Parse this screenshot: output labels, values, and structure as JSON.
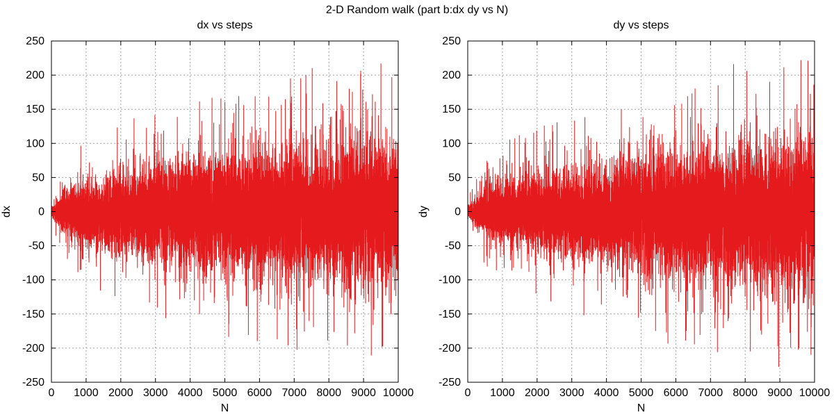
{
  "figure": {
    "title": "2-D Random walk (part b:dx dy vs N)",
    "series_color": "#e41a1c",
    "background": "#ffffff"
  },
  "chart_data": [
    {
      "type": "line",
      "title": "dx vs steps",
      "xlabel": "N",
      "ylabel": "dx",
      "xlim": [
        0,
        10000
      ],
      "ylim": [
        -250,
        250
      ],
      "xticks": [
        0,
        1000,
        2000,
        3000,
        4000,
        5000,
        6000,
        7000,
        8000,
        9000,
        10000
      ],
      "yticks": [
        250,
        200,
        150,
        100,
        50,
        0,
        -50,
        -100,
        -150,
        -200,
        -250
      ],
      "grid": true,
      "series": [
        {
          "color": "#e41a1c",
          "n_points": 10000,
          "envelope_x": [
            0,
            500,
            1000,
            1500,
            2000,
            2500,
            3000,
            3500,
            4000,
            4500,
            5000,
            5500,
            6000,
            6500,
            7000,
            7500,
            8000,
            8500,
            9000,
            9500,
            10000
          ],
          "envelope_upper": [
            10,
            40,
            50,
            55,
            60,
            65,
            70,
            75,
            80,
            85,
            85,
            90,
            95,
            95,
            100,
            100,
            100,
            105,
            110,
            115,
            120
          ],
          "envelope_lower": [
            -10,
            -40,
            -55,
            -60,
            -65,
            -70,
            -75,
            -80,
            -85,
            -85,
            -90,
            -90,
            -95,
            -100,
            -100,
            -105,
            -105,
            -110,
            -110,
            -115,
            -120
          ],
          "max": 232,
          "min": -245
        }
      ]
    },
    {
      "type": "line",
      "title": "dy vs steps",
      "xlabel": "N",
      "ylabel": "dy",
      "xlim": [
        0,
        10000
      ],
      "ylim": [
        -250,
        250
      ],
      "xticks": [
        0,
        1000,
        2000,
        3000,
        4000,
        5000,
        6000,
        7000,
        8000,
        9000,
        10000
      ],
      "yticks": [
        250,
        200,
        150,
        100,
        50,
        0,
        -50,
        -100,
        -150,
        -200,
        -250
      ],
      "grid": true,
      "series": [
        {
          "color": "#e41a1c",
          "n_points": 10000,
          "envelope_x": [
            0,
            500,
            1000,
            1500,
            2000,
            2500,
            3000,
            3500,
            4000,
            4500,
            5000,
            5500,
            6000,
            6500,
            7000,
            7500,
            8000,
            8500,
            9000,
            9500,
            10000
          ],
          "envelope_upper": [
            10,
            35,
            50,
            55,
            60,
            65,
            65,
            70,
            75,
            80,
            85,
            90,
            95,
            95,
            100,
            100,
            105,
            110,
            110,
            115,
            120
          ],
          "envelope_lower": [
            -10,
            -40,
            -55,
            -60,
            -65,
            -70,
            -75,
            -75,
            -80,
            -85,
            -90,
            -95,
            -95,
            -100,
            -100,
            -105,
            -110,
            -110,
            -115,
            -120,
            -125
          ],
          "max": 222,
          "min": -238
        }
      ]
    }
  ]
}
